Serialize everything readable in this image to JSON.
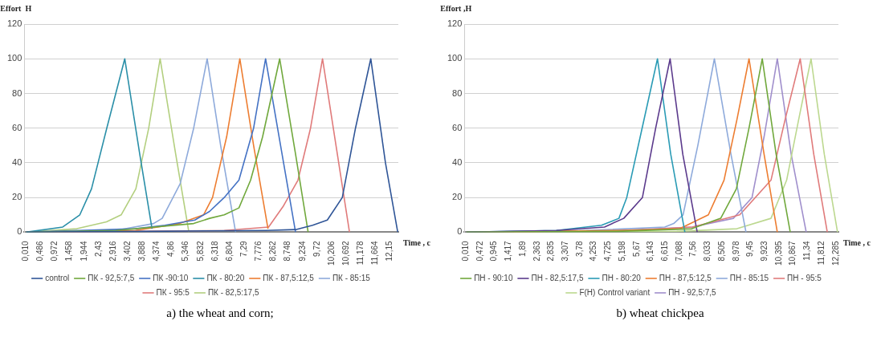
{
  "chart_data": [
    {
      "type": "line",
      "ylabel": "Effort  H",
      "xlabel": "Time , c",
      "annotations": [
        "a) the wheat and corn;"
      ],
      "grid": "y",
      "legend": "bottom",
      "marker": "none",
      "line_style": "solid",
      "xlim": [
        -0.05,
        12.43
      ],
      "xticks": [
        {
          "value": 0.01,
          "label": "0,010"
        },
        {
          "value": 0.486,
          "label": "0,486"
        },
        {
          "value": 0.972,
          "label": "0,972"
        },
        {
          "value": 1.458,
          "label": "1,458"
        },
        {
          "value": 1.944,
          "label": "1,944"
        },
        {
          "value": 2.43,
          "label": "2,43"
        },
        {
          "value": 2.916,
          "label": "2,916"
        },
        {
          "value": 3.402,
          "label": "3,402"
        },
        {
          "value": 3.888,
          "label": "3,888"
        },
        {
          "value": 4.374,
          "label": "4,374"
        },
        {
          "value": 4.86,
          "label": "4,86"
        },
        {
          "value": 5.346,
          "label": "5,346"
        },
        {
          "value": 5.832,
          "label": "5,832"
        },
        {
          "value": 6.318,
          "label": "6,318"
        },
        {
          "value": 6.804,
          "label": "6,804"
        },
        {
          "value": 7.29,
          "label": "7,29"
        },
        {
          "value": 7.776,
          "label": "7,776"
        },
        {
          "value": 8.262,
          "label": "8,262"
        },
        {
          "value": 8.748,
          "label": "8,748"
        },
        {
          "value": 9.234,
          "label": "9,234"
        },
        {
          "value": 9.72,
          "label": "9,72"
        },
        {
          "value": 10.206,
          "label": "10,206"
        },
        {
          "value": 10.692,
          "label": "10,692"
        },
        {
          "value": 11.178,
          "label": "11,178"
        },
        {
          "value": 11.664,
          "label": "11,664"
        },
        {
          "value": 12.15,
          "label": "12,15"
        }
      ],
      "ylim": [
        0,
        120
      ],
      "yticks": [
        0,
        20,
        40,
        60,
        80,
        100,
        120
      ],
      "series": [
        {
          "name": "control",
          "color": "#2f5597",
          "x": [
            0.01,
            4.0,
            8.0,
            9.0,
            9.57,
            10.06,
            10.56,
            11.0,
            11.51,
            12.0,
            12.41
          ],
          "values": [
            0,
            0.5,
            1,
            1.5,
            4,
            7,
            20,
            60,
            100,
            40,
            0
          ]
        },
        {
          "name": "ПК - 92,5:7,5",
          "color": "#70a83c",
          "x": [
            0.01,
            3.0,
            5.6,
            6.13,
            6.62,
            7.11,
            7.5,
            7.9,
            8.47,
            9.0,
            9.42
          ],
          "values": [
            0,
            1,
            5,
            8,
            10,
            14,
            30,
            55,
            100,
            45,
            0
          ]
        },
        {
          "name": "ПК -90:10",
          "color": "#4472c4",
          "x": [
            0.01,
            3.66,
            4.64,
            5.64,
            6.13,
            6.62,
            7.11,
            7.6,
            8.0,
            8.5,
            9.0
          ],
          "values": [
            0,
            2,
            4,
            7,
            12,
            20,
            30,
            60,
            100,
            50,
            0
          ]
        },
        {
          "name": "ПК - 80:20",
          "color": "#2a8fa8",
          "x": [
            0.01,
            1.23,
            1.8,
            2.19,
            2.7,
            3.3,
            3.8,
            4.21
          ],
          "values": [
            0,
            3,
            10,
            25,
            60,
            100,
            45,
            2
          ]
        },
        {
          "name": "ПК - 87,5:12,5",
          "color": "#ed7d31",
          "x": [
            0.01,
            3.66,
            5.13,
            5.93,
            6.23,
            6.7,
            7.14,
            7.6,
            8.08
          ],
          "values": [
            0,
            1,
            5,
            10,
            20,
            55,
            100,
            50,
            2
          ]
        },
        {
          "name": "ПК - 85:15",
          "color": "#8eaadb",
          "x": [
            0.01,
            3.0,
            4.26,
            4.55,
            5.15,
            5.6,
            6.05,
            6.5,
            7.0
          ],
          "values": [
            0,
            1,
            5,
            8,
            28,
            60,
            100,
            50,
            0
          ]
        },
        {
          "name": "ПК - 95:5",
          "color": "#e07b7b",
          "x": [
            0.01,
            6.62,
            8.1,
            8.59,
            9.08,
            9.5,
            9.9,
            10.35,
            10.8
          ],
          "values": [
            0,
            1,
            3,
            15,
            30,
            60,
            100,
            50,
            0
          ]
        },
        {
          "name": "ПК - 82,5:17,5",
          "color": "#b3cf7f",
          "x": [
            0.01,
            1.7,
            2.69,
            3.18,
            3.67,
            4.1,
            4.48,
            5.0,
            5.44
          ],
          "values": [
            0,
            2,
            6,
            10,
            25,
            60,
            100,
            45,
            0
          ]
        }
      ]
    },
    {
      "type": "line",
      "ylabel": "Effort ,H",
      "xlabel": "Time , c",
      "annotations": [
        "b) wheat chickpea"
      ],
      "grid": "y",
      "legend": "bottom",
      "marker": "none",
      "line_style": "solid",
      "xlim": [
        -0.05,
        12.37
      ],
      "xticks": [
        {
          "value": 0.01,
          "label": "0,010"
        },
        {
          "value": 0.472,
          "label": "0,472"
        },
        {
          "value": 0.945,
          "label": "0,945"
        },
        {
          "value": 1.417,
          "label": "1,417"
        },
        {
          "value": 1.89,
          "label": "1,89"
        },
        {
          "value": 2.363,
          "label": "2,363"
        },
        {
          "value": 2.835,
          "label": "2,835"
        },
        {
          "value": 3.307,
          "label": "3,307"
        },
        {
          "value": 3.78,
          "label": "3,78"
        },
        {
          "value": 4.253,
          "label": "4,253"
        },
        {
          "value": 4.725,
          "label": "4,725"
        },
        {
          "value": 5.198,
          "label": "5,198"
        },
        {
          "value": 5.67,
          "label": "5,67"
        },
        {
          "value": 6.143,
          "label": "6,143"
        },
        {
          "value": 6.615,
          "label": "6,615"
        },
        {
          "value": 7.088,
          "label": "7,088"
        },
        {
          "value": 7.56,
          "label": "7,56"
        },
        {
          "value": 8.033,
          "label": "8,033"
        },
        {
          "value": 8.505,
          "label": "8,505"
        },
        {
          "value": 8.978,
          "label": "8,978"
        },
        {
          "value": 9.45,
          "label": "9,45"
        },
        {
          "value": 9.923,
          "label": "9,923"
        },
        {
          "value": 10.395,
          "label": "10,395"
        },
        {
          "value": 10.867,
          "label": "10,867"
        },
        {
          "value": 11.34,
          "label": "11,34"
        },
        {
          "value": 11.812,
          "label": "11,812"
        },
        {
          "value": 12.285,
          "label": "12,285"
        }
      ],
      "ylim": [
        0,
        120
      ],
      "yticks": [
        0,
        20,
        40,
        60,
        80,
        100,
        120
      ],
      "series": [
        {
          "name": "ПН - 90:10",
          "color": "#70a83c",
          "x": [
            0.01,
            5.0,
            7.5,
            8.46,
            8.98,
            9.4,
            9.84,
            10.3,
            10.77
          ],
          "values": [
            0,
            0.5,
            2,
            8,
            25,
            60,
            100,
            45,
            0
          ]
        },
        {
          "name": "ПН - 82,5:17,5",
          "color": "#5b3a8c",
          "x": [
            0.01,
            3.0,
            4.6,
            5.24,
            5.86,
            6.3,
            6.78,
            7.2,
            7.68
          ],
          "values": [
            0,
            1,
            3,
            8,
            20,
            60,
            100,
            45,
            0
          ]
        },
        {
          "name": "ПН - 80:20",
          "color": "#2a9bb5",
          "x": [
            0.01,
            3.0,
            4.5,
            5.08,
            5.34,
            5.85,
            6.36,
            6.8,
            7.27
          ],
          "values": [
            0,
            1,
            4,
            8,
            20,
            60,
            100,
            45,
            0
          ]
        },
        {
          "name": "ПН - 87,5:12,5",
          "color": "#ed7d31",
          "x": [
            0.01,
            5.0,
            7.1,
            8.05,
            8.57,
            9.0,
            9.4,
            9.9,
            10.34
          ],
          "values": [
            0,
            1,
            2,
            10,
            30,
            65,
            100,
            45,
            0
          ]
        },
        {
          "name": "ПН - 85:15",
          "color": "#8eaadb",
          "x": [
            0.01,
            4.0,
            6.6,
            6.9,
            7.21,
            7.7,
            8.25,
            8.8,
            9.3
          ],
          "values": [
            0,
            1,
            3,
            5,
            10,
            50,
            100,
            45,
            0
          ]
        },
        {
          "name": "ПН - 95:5",
          "color": "#e07b7b",
          "x": [
            0.01,
            5.5,
            7.52,
            9.09,
            10.13,
            10.6,
            11.1,
            11.55,
            12.0
          ],
          "values": [
            0,
            1,
            3,
            10,
            30,
            65,
            100,
            45,
            0
          ]
        },
        {
          "name": "F(H) Control variant",
          "color": "#bcd88f",
          "x": [
            0.01,
            7.0,
            9.0,
            10.13,
            10.65,
            11.05,
            11.46,
            11.9,
            12.34
          ],
          "values": [
            0,
            0.5,
            2,
            8,
            30,
            65,
            100,
            45,
            0
          ]
        },
        {
          "name": "ПН - 92,5:7,5",
          "color": "#a08fcc",
          "x": [
            0.01,
            5.0,
            7.52,
            8.88,
            9.5,
            9.9,
            10.34,
            10.8,
            11.3
          ],
          "values": [
            0,
            1,
            3,
            8,
            20,
            55,
            100,
            45,
            0
          ]
        }
      ]
    }
  ]
}
